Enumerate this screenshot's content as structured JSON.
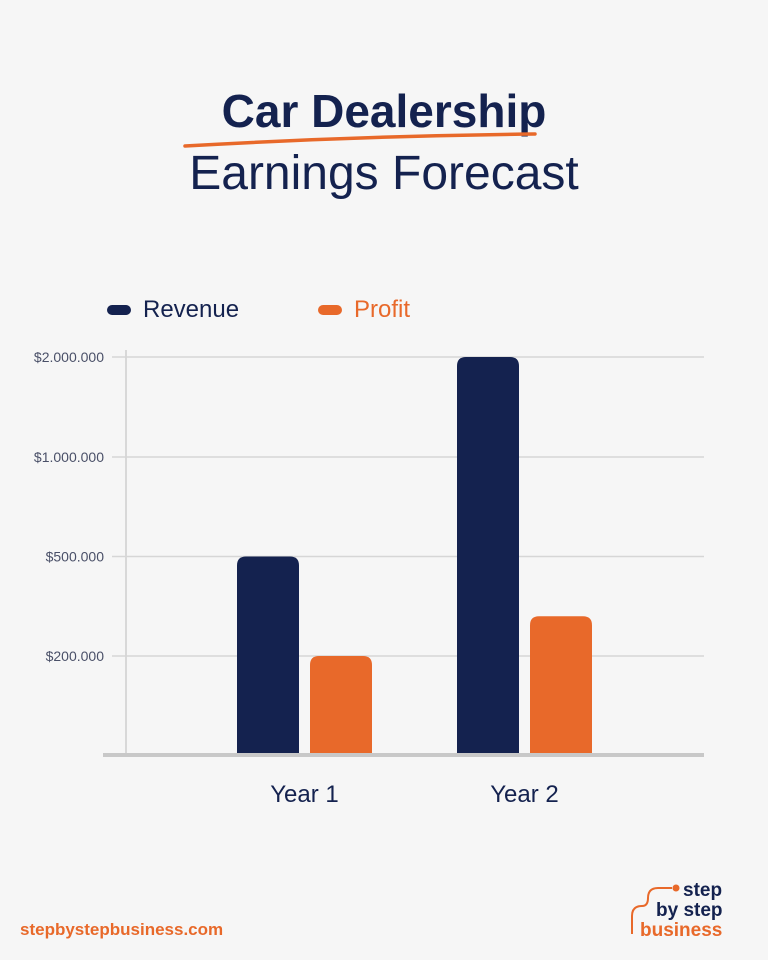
{
  "chart_data": {
    "type": "bar",
    "title": "Car Dealership",
    "subtitle": "Earnings Forecast",
    "categories": [
      "Year 1",
      "Year 2"
    ],
    "series": [
      {
        "name": "Revenue",
        "color": "#14224f",
        "values": [
          500000,
          2000000
        ]
      },
      {
        "name": "Profit",
        "color": "#e8692a",
        "values": [
          200000,
          320000
        ]
      }
    ],
    "y_ticks": [
      {
        "value": 200000,
        "label": "$200.000"
      },
      {
        "value": 500000,
        "label": "$500.000"
      },
      {
        "value": 1000000,
        "label": "$1.000.000"
      },
      {
        "value": 2000000,
        "label": "$2.000.000"
      }
    ],
    "y_scale": "non-linear (equally spaced ticks)",
    "grid": true,
    "legend": "top-left",
    "xlabel": "",
    "ylabel": ""
  },
  "footer": {
    "url": "stepbystepbusiness.com"
  },
  "logo": {
    "line1": "step",
    "line2": "by step",
    "line3": "business"
  },
  "colors": {
    "navy": "#14224f",
    "orange": "#e8692a",
    "background": "#f6f6f6"
  }
}
